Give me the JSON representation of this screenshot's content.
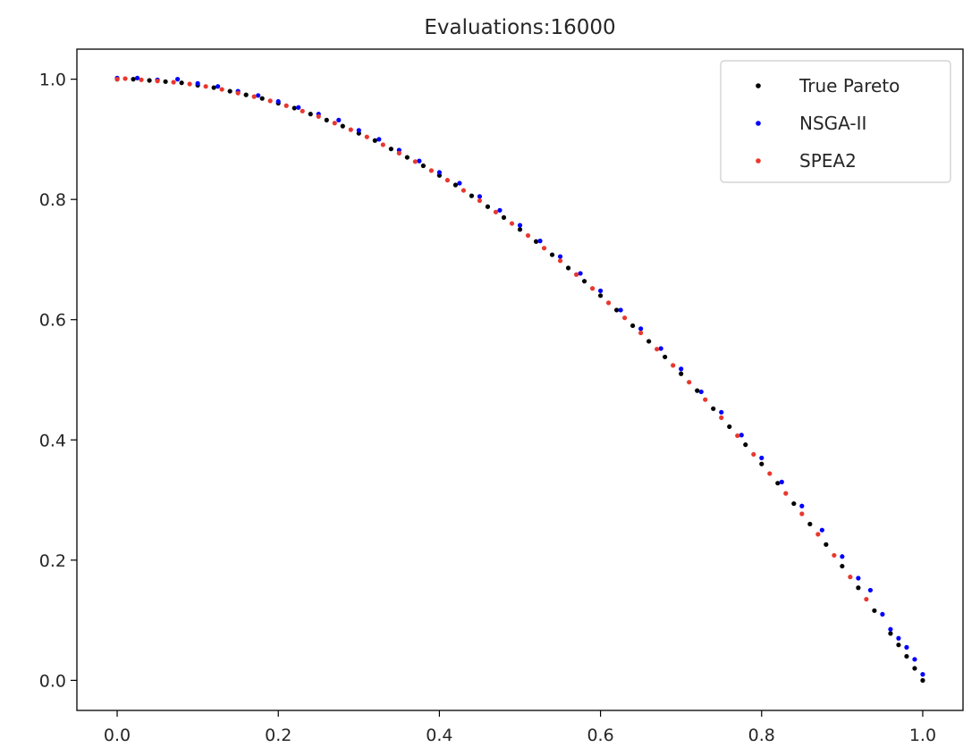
{
  "chart_data": {
    "type": "scatter",
    "title": "Evaluations:16000",
    "xlabel": "",
    "ylabel": "",
    "xlim": [
      -0.05,
      1.05
    ],
    "ylim": [
      -0.05,
      1.05
    ],
    "xticks": [
      "0.0",
      "0.2",
      "0.4",
      "0.6",
      "0.8",
      "1.0"
    ],
    "yticks": [
      "0.0",
      "0.2",
      "0.4",
      "0.6",
      "0.8",
      "1.0"
    ],
    "grid": false,
    "legend_position": "top-right",
    "series": [
      {
        "name": "True Pareto",
        "color": "#000000",
        "x": [
          0.0,
          0.02,
          0.04,
          0.06,
          0.08,
          0.1,
          0.12,
          0.14,
          0.16,
          0.18,
          0.2,
          0.22,
          0.24,
          0.26,
          0.28,
          0.3,
          0.32,
          0.34,
          0.36,
          0.38,
          0.4,
          0.42,
          0.44,
          0.46,
          0.48,
          0.5,
          0.52,
          0.54,
          0.56,
          0.58,
          0.6,
          0.62,
          0.64,
          0.66,
          0.68,
          0.7,
          0.72,
          0.74,
          0.76,
          0.78,
          0.8,
          0.82,
          0.84,
          0.86,
          0.88,
          0.9,
          0.92,
          0.94,
          0.96,
          0.97,
          0.98,
          0.99,
          1.0
        ],
        "y": [
          1.0,
          1.0,
          0.998,
          0.996,
          0.994,
          0.99,
          0.986,
          0.98,
          0.974,
          0.968,
          0.96,
          0.952,
          0.942,
          0.932,
          0.922,
          0.91,
          0.898,
          0.884,
          0.87,
          0.856,
          0.84,
          0.824,
          0.806,
          0.788,
          0.77,
          0.75,
          0.73,
          0.708,
          0.686,
          0.664,
          0.64,
          0.616,
          0.59,
          0.564,
          0.538,
          0.51,
          0.482,
          0.452,
          0.422,
          0.392,
          0.36,
          0.328,
          0.294,
          0.26,
          0.226,
          0.19,
          0.154,
          0.116,
          0.078,
          0.059,
          0.04,
          0.02,
          0.0
        ]
      },
      {
        "name": "NSGA-II",
        "color": "#0000ff",
        "x": [
          0.0,
          0.025,
          0.05,
          0.075,
          0.1,
          0.125,
          0.15,
          0.175,
          0.2,
          0.225,
          0.25,
          0.275,
          0.3,
          0.325,
          0.35,
          0.375,
          0.4,
          0.425,
          0.45,
          0.475,
          0.5,
          0.525,
          0.55,
          0.575,
          0.6,
          0.625,
          0.65,
          0.675,
          0.7,
          0.725,
          0.75,
          0.775,
          0.8,
          0.825,
          0.85,
          0.875,
          0.9,
          0.92,
          0.935,
          0.95,
          0.96,
          0.97,
          0.98,
          0.99,
          1.0
        ],
        "y": [
          1.002,
          1.002,
          0.999,
          1.0,
          0.993,
          0.988,
          0.98,
          0.973,
          0.963,
          0.953,
          0.942,
          0.932,
          0.915,
          0.9,
          0.882,
          0.864,
          0.845,
          0.827,
          0.805,
          0.782,
          0.757,
          0.731,
          0.705,
          0.677,
          0.648,
          0.616,
          0.585,
          0.552,
          0.518,
          0.48,
          0.446,
          0.408,
          0.37,
          0.33,
          0.29,
          0.25,
          0.206,
          0.17,
          0.15,
          0.11,
          0.085,
          0.07,
          0.055,
          0.035,
          0.01
        ]
      },
      {
        "name": "SPEA2",
        "color": "#e8382e",
        "x": [
          0.0,
          0.01,
          0.03,
          0.05,
          0.07,
          0.09,
          0.11,
          0.13,
          0.15,
          0.17,
          0.19,
          0.21,
          0.23,
          0.25,
          0.27,
          0.29,
          0.31,
          0.33,
          0.35,
          0.37,
          0.39,
          0.41,
          0.43,
          0.45,
          0.47,
          0.49,
          0.51,
          0.53,
          0.55,
          0.57,
          0.59,
          0.61,
          0.63,
          0.65,
          0.67,
          0.69,
          0.71,
          0.73,
          0.75,
          0.77,
          0.79,
          0.81,
          0.83,
          0.85,
          0.87,
          0.89,
          0.91,
          0.93
        ],
        "y": [
          1.0,
          1.001,
          0.999,
          0.997,
          0.995,
          0.992,
          0.988,
          0.983,
          0.977,
          0.971,
          0.964,
          0.956,
          0.947,
          0.938,
          0.927,
          0.916,
          0.904,
          0.891,
          0.877,
          0.863,
          0.848,
          0.832,
          0.815,
          0.798,
          0.779,
          0.76,
          0.74,
          0.719,
          0.698,
          0.675,
          0.652,
          0.628,
          0.603,
          0.578,
          0.551,
          0.524,
          0.496,
          0.467,
          0.437,
          0.407,
          0.376,
          0.344,
          0.311,
          0.277,
          0.243,
          0.208,
          0.172,
          0.135
        ]
      }
    ]
  }
}
